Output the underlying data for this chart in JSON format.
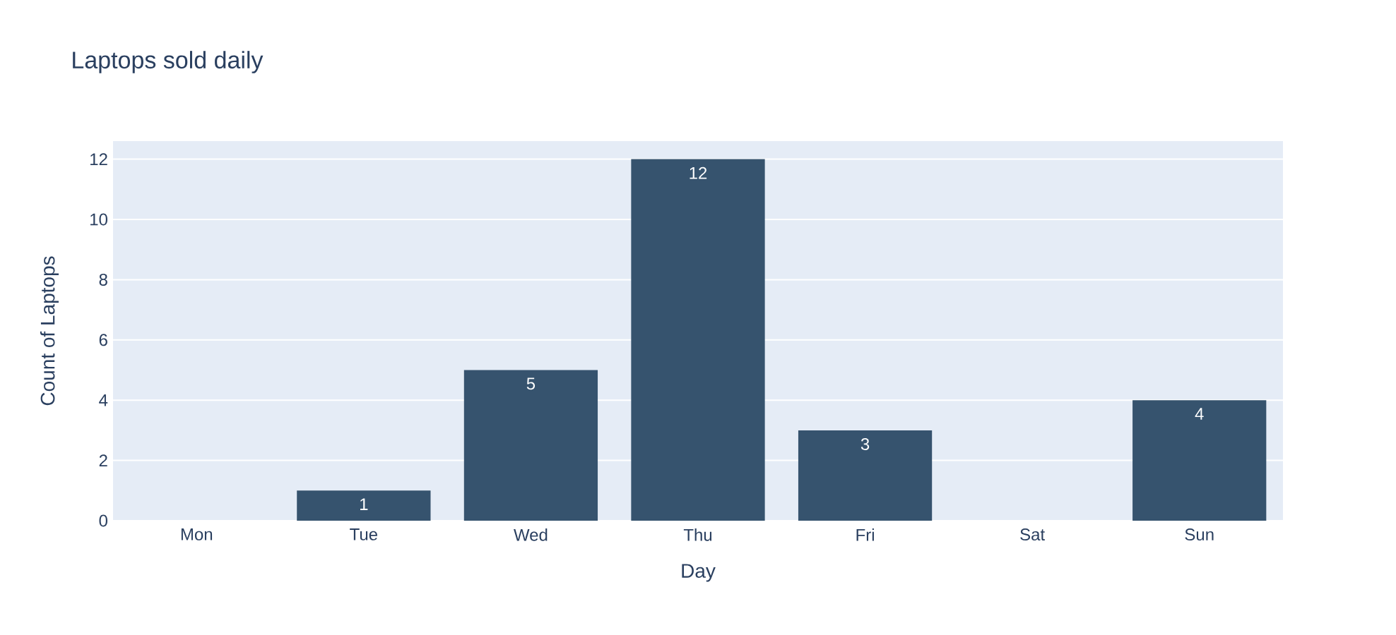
{
  "chart_data": {
    "type": "bar",
    "title": "Laptops sold daily",
    "xlabel": "Day",
    "ylabel": "Count of Laptops",
    "categories": [
      "Mon",
      "Tue",
      "Wed",
      "Thu",
      "Fri",
      "Sat",
      "Sun"
    ],
    "values": [
      0,
      1,
      5,
      12,
      3,
      0,
      4
    ],
    "value_labels": [
      null,
      "1",
      "5",
      "12",
      "3",
      null,
      "4"
    ],
    "color": "#36536e",
    "ylim": [
      0,
      12.6
    ],
    "yticks": [
      0,
      2,
      4,
      6,
      8,
      10,
      12
    ],
    "grid": "y"
  }
}
